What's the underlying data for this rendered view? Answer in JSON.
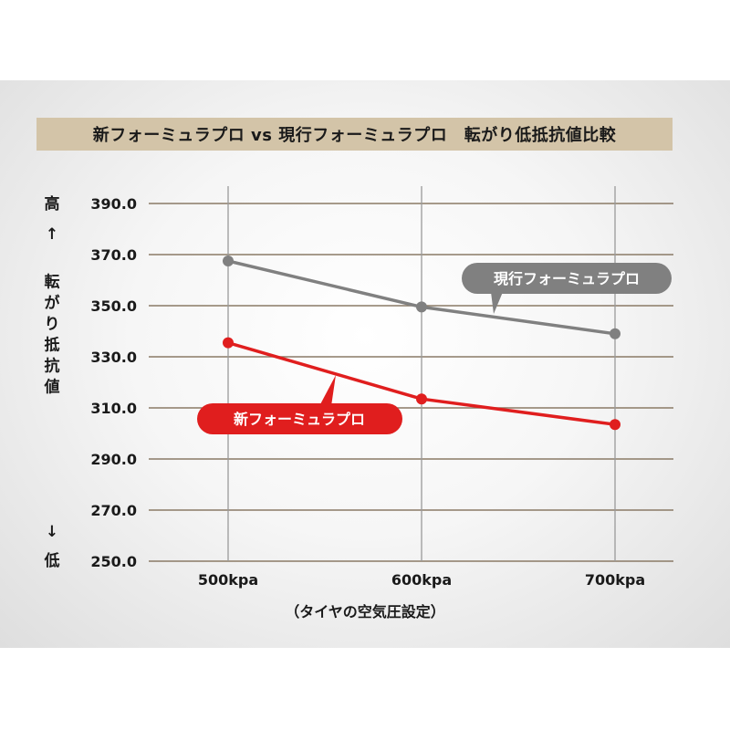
{
  "title": "新フォーミュラプロ vs 現行フォーミュラプロ　転がり低抵抗値比較",
  "chart_data": {
    "type": "line",
    "categories": [
      "500kpa",
      "600kpa",
      "700kpa"
    ],
    "series": [
      {
        "name": "現行フォーミュラプロ",
        "values": [
          367.5,
          349.5,
          339.0
        ],
        "color": "#808080"
      },
      {
        "name": "新フォーミュラプロ",
        "values": [
          335.5,
          313.5,
          303.5
        ],
        "color": "#e01e1e"
      }
    ],
    "yticks": [
      "390.0",
      "370.0",
      "350.0",
      "330.0",
      "310.0",
      "290.0",
      "270.0",
      "250.0"
    ],
    "ylim": [
      250,
      390
    ],
    "ylabel": {
      "top": "高",
      "up_arrow": "↑",
      "text": "転がり抵抗値",
      "down_arrow": "↓",
      "bottom": "低"
    },
    "xlabel": "（タイヤの空気圧設定）",
    "grid": true
  }
}
